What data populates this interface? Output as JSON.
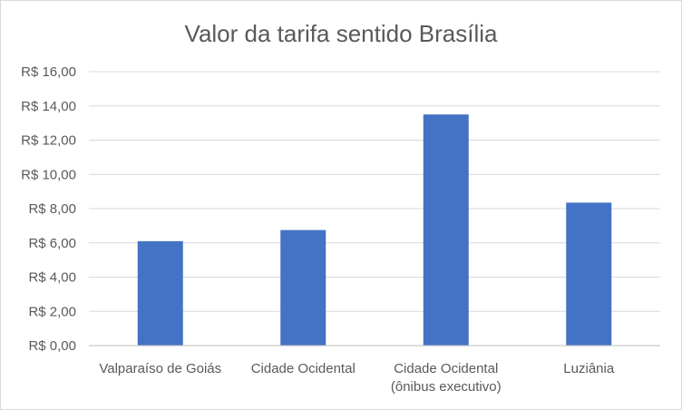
{
  "chart_data": {
    "type": "bar",
    "title": "Valor da tarifa sentido Brasília",
    "categories": [
      [
        "Valparaíso de Goiás"
      ],
      [
        "Cidade Ocidental"
      ],
      [
        "Cidade Ocidental",
        "(ônibus executivo)"
      ],
      [
        "Luziânia"
      ]
    ],
    "values": [
      6.1,
      6.75,
      13.5,
      8.35
    ],
    "ylim": [
      0,
      16
    ],
    "yticks": [
      0,
      2,
      4,
      6,
      8,
      10,
      12,
      14,
      16
    ],
    "ytick_labels": [
      "R$ 0,00",
      "R$ 2,00",
      "R$ 4,00",
      "R$ 6,00",
      "R$ 8,00",
      "R$ 10,00",
      "R$ 12,00",
      "R$ 14,00",
      "R$ 16,00"
    ],
    "xlabel": "",
    "ylabel": "",
    "grid": true,
    "legend": "none",
    "bar_color": "#4472c4"
  }
}
